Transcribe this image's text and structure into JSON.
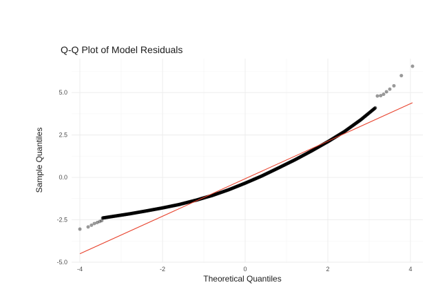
{
  "chart_data": {
    "type": "scatter",
    "title": "Q-Q Plot of Model Residuals",
    "xlabel": "Theoretical Quantiles",
    "ylabel": "Sample Quantiles",
    "xlim": [
      -4.2,
      4.3
    ],
    "ylim": [
      -5.0,
      7.0
    ],
    "x_ticks": [
      -4,
      -2,
      0,
      2,
      4
    ],
    "x_tick_labels": [
      "-4",
      "-2",
      "0",
      "2",
      "4"
    ],
    "y_ticks": [
      -5.0,
      -2.5,
      0.0,
      2.5,
      5.0
    ],
    "y_tick_labels": [
      "-5.0",
      "-2.5",
      "0.0",
      "2.5",
      "5.0"
    ],
    "grid": true,
    "point_color": "#000000",
    "line_color": "#e8432e",
    "reference_line": {
      "x": [
        -4.0,
        4.05
      ],
      "y": [
        -4.5,
        4.4
      ]
    },
    "sample_quantiles_by_theoretical": {
      "x": [
        -4.0,
        -3.6,
        -3.2,
        -2.8,
        -2.4,
        -2.0,
        -1.6,
        -1.2,
        -0.8,
        -0.4,
        0.0,
        0.4,
        0.8,
        1.2,
        1.6,
        2.0,
        2.4,
        2.8,
        3.2,
        3.6,
        4.0
      ],
      "y": [
        -2.6,
        -2.45,
        -2.3,
        -2.15,
        -1.98,
        -1.8,
        -1.6,
        -1.35,
        -1.07,
        -0.73,
        -0.34,
        0.08,
        0.55,
        1.03,
        1.55,
        2.1,
        2.7,
        3.4,
        4.2,
        5.1,
        6.3
      ]
    },
    "tail_points": [
      {
        "x": -4.0,
        "y": -3.05
      },
      {
        "x": -3.8,
        "y": -2.92
      },
      {
        "x": -3.72,
        "y": -2.82
      },
      {
        "x": -3.65,
        "y": -2.72
      },
      {
        "x": -3.58,
        "y": -2.66
      },
      {
        "x": -3.52,
        "y": -2.6
      },
      {
        "x": -3.47,
        "y": -2.55
      },
      {
        "x": 3.2,
        "y": 4.8
      },
      {
        "x": 3.28,
        "y": 4.82
      },
      {
        "x": 3.35,
        "y": 4.9
      },
      {
        "x": 3.42,
        "y": 5.05
      },
      {
        "x": 3.5,
        "y": 5.2
      },
      {
        "x": 3.6,
        "y": 5.4
      },
      {
        "x": 3.78,
        "y": 6.0
      },
      {
        "x": 4.05,
        "y": 6.55
      }
    ]
  }
}
